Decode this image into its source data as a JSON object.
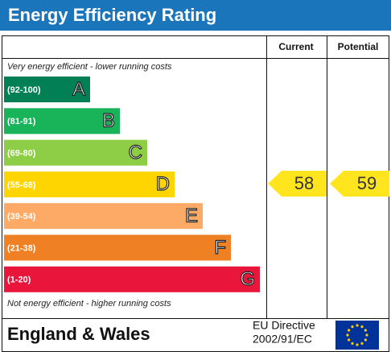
{
  "header": {
    "title": "Energy Efficiency Rating",
    "current": "Current",
    "potential": "Potential"
  },
  "top_note": "Very energy efficient - lower running costs",
  "bottom_note": "Not energy efficient - higher running costs",
  "bands": [
    {
      "range": "(92-100)",
      "letter": "A"
    },
    {
      "range": "(81-91)",
      "letter": "B"
    },
    {
      "range": "(69-80)",
      "letter": "C"
    },
    {
      "range": "(55-68)",
      "letter": "D"
    },
    {
      "range": "(39-54)",
      "letter": "E"
    },
    {
      "range": "(21-38)",
      "letter": "F"
    },
    {
      "range": "(1-20)",
      "letter": "G"
    }
  ],
  "current_rating": "58",
  "potential_rating": "59",
  "footer": {
    "region": "England & Wales",
    "directive_line1": "EU Directive",
    "directive_line2": "2002/91/EC"
  }
}
